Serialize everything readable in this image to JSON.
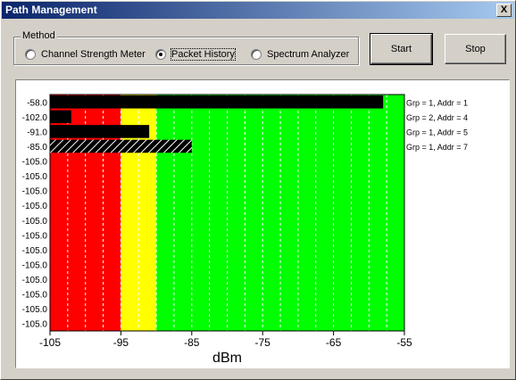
{
  "window": {
    "title": "Path Management",
    "close_glyph": "X"
  },
  "method": {
    "legend": "Method",
    "options": [
      {
        "label": "Channel Strength Meter",
        "selected": false
      },
      {
        "label": "Packet History",
        "selected": true
      },
      {
        "label": "Spectrum Analyzer",
        "selected": false
      }
    ]
  },
  "buttons": {
    "start": "Start",
    "stop": "Stop"
  },
  "zones": {
    "red": "#ff0000",
    "yellow": "#ffff00",
    "green": "#00ff00"
  },
  "chart_data": {
    "type": "bar",
    "orientation": "horizontal",
    "xlabel": "dBm",
    "xlim": [
      -105,
      -55
    ],
    "xticks": [
      "-105",
      "-95",
      "-85",
      "-75",
      "-65",
      "-55"
    ],
    "bands": [
      {
        "name": "red",
        "from": -105,
        "to": -95
      },
      {
        "name": "yellow",
        "from": -95,
        "to": -90
      },
      {
        "name": "green",
        "from": -90,
        "to": -55
      }
    ],
    "categories": [
      "-58.0",
      "-102.0",
      "-91.0",
      "-85.0",
      "-105.0",
      "-105.0",
      "-105.0",
      "-105.0",
      "-105.0",
      "-105.0",
      "-105.0",
      "-105.0",
      "-105.0",
      "-105.0",
      "-105.0",
      "-105.0"
    ],
    "values": [
      -58.0,
      -102.0,
      -91.0,
      -85.0,
      -105.0,
      -105.0,
      -105.0,
      -105.0,
      -105.0,
      -105.0,
      -105.0,
      -105.0,
      -105.0,
      -105.0,
      -105.0,
      -105.0
    ],
    "hatched": [
      false,
      false,
      false,
      true,
      false,
      false,
      false,
      false,
      false,
      false,
      false,
      false,
      false,
      false,
      false,
      false
    ],
    "labels": [
      "Grp =   1, Addr =   1",
      "Grp =   2, Addr =   4",
      "Grp =   1, Addr =   5",
      "Grp =   1, Addr =   7"
    ]
  }
}
